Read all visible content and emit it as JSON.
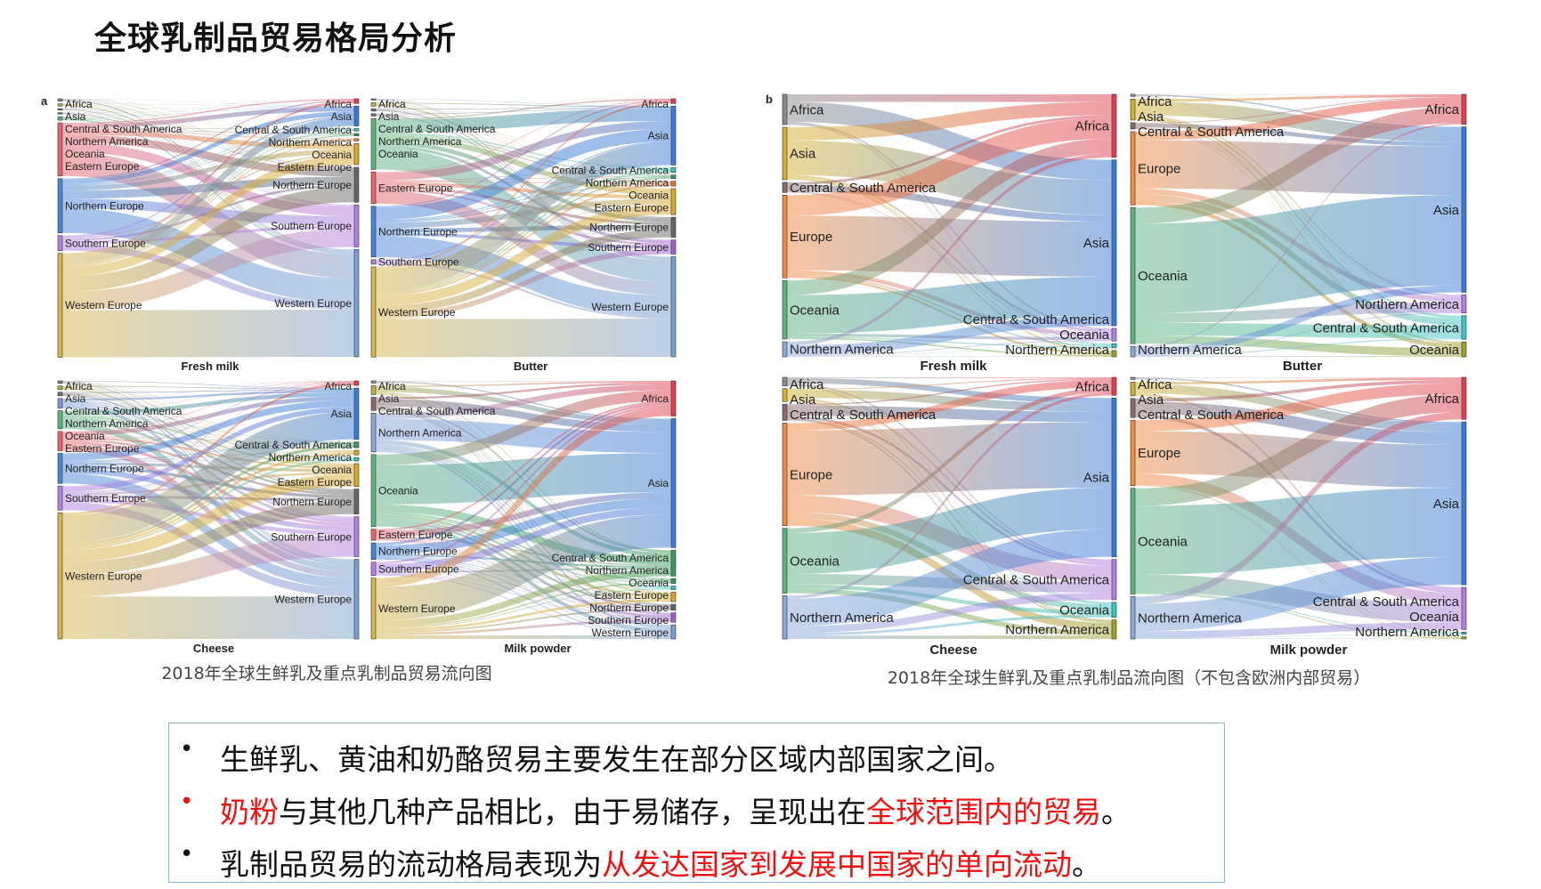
{
  "title": "全球乳制品贸易格局分析",
  "panel_a": {
    "letter": "a",
    "caption": "2018年全球生鲜乳及重点乳制品贸易流向图",
    "diagrams": [
      {
        "name": "Fresh milk",
        "left": [
          [
            "Africa",
            2,
            "#8a8a8a"
          ],
          [
            "Asia",
            2,
            "#b5b04a"
          ],
          [
            "Central & South America",
            1,
            "#777777"
          ],
          [
            "Northern America",
            1,
            "#777777"
          ],
          [
            "Oceania",
            3,
            "#5db37e"
          ],
          [
            "Eastern Europe",
            46,
            "#e8646a"
          ],
          [
            "Northern Europe",
            47,
            "#4a86d8"
          ],
          [
            "Southern Europe",
            13,
            "#b37fe0"
          ],
          [
            "Western Europe",
            90,
            "#d8b44a"
          ]
        ],
        "right": [
          [
            "Africa",
            4,
            "#e04050"
          ],
          [
            "Asia",
            17,
            "#3a7bd5"
          ],
          [
            "Central & South America",
            2,
            "#3cc5b5"
          ],
          [
            "Northern America",
            2,
            "#3a9a5a"
          ],
          [
            "Oceania",
            2,
            "#e07a30"
          ],
          [
            "Eastern Europe",
            18,
            "#d8a830"
          ],
          [
            "Northern Europe",
            30,
            "#666666"
          ],
          [
            "Southern Europe",
            36,
            "#b37fe0"
          ],
          [
            "Western Europe",
            92,
            "#7aa0d0"
          ]
        ]
      },
      {
        "name": "Butter",
        "left": [
          [
            "Africa",
            1,
            "#8a8a8a"
          ],
          [
            "Asia",
            3,
            "#b5b04a"
          ],
          [
            "Central & South America",
            2,
            "#777777"
          ],
          [
            "Northern America",
            2,
            "#777777"
          ],
          [
            "Oceania",
            45,
            "#5db37e"
          ],
          [
            "Eastern Europe",
            28,
            "#e8646a"
          ],
          [
            "Northern Europe",
            45,
            "#4a86d8"
          ],
          [
            "Southern Europe",
            4,
            "#b37fe0"
          ],
          [
            "Western Europe",
            80,
            "#d8b44a"
          ]
        ],
        "right": [
          [
            "Africa",
            4,
            "#e04050"
          ],
          [
            "Asia",
            50,
            "#3a7bd5"
          ],
          [
            "Central & South America",
            4,
            "#3cc5b5"
          ],
          [
            "Northern America",
            3,
            "#3a9a5a"
          ],
          [
            "Oceania",
            4,
            "#e07a30"
          ],
          [
            "Eastern Europe",
            22,
            "#d8a830"
          ],
          [
            "Northern Europe",
            17,
            "#666666"
          ],
          [
            "Southern Europe",
            12,
            "#a060d0"
          ],
          [
            "Western Europe",
            85,
            "#7aa0d0"
          ]
        ]
      },
      {
        "name": "Cheese",
        "left": [
          [
            "Africa",
            2,
            "#8a8a8a"
          ],
          [
            "Asia",
            3,
            "#b5b04a"
          ],
          [
            "Central & South America",
            3,
            "#777777"
          ],
          [
            "Northern America",
            8,
            "#7a9ad8"
          ],
          [
            "Oceania",
            15,
            "#5db37e"
          ],
          [
            "Eastern Europe",
            16,
            "#e8646a"
          ],
          [
            "Northern Europe",
            25,
            "#4a86d8"
          ],
          [
            "Southern Europe",
            20,
            "#b37fe0"
          ],
          [
            "Western Europe",
            105,
            "#d8b44a"
          ]
        ],
        "right": [
          [
            "Africa",
            4,
            "#e04050"
          ],
          [
            "Asia",
            45,
            "#3a7bd5"
          ],
          [
            "Central & South America",
            5,
            "#3a9a5a"
          ],
          [
            "Northern America",
            4,
            "#d8a830"
          ],
          [
            "Oceania",
            3,
            "#3cc5b5"
          ],
          [
            "Eastern Europe",
            20,
            "#d8a830"
          ],
          [
            "Northern Europe",
            22,
            "#666666"
          ],
          [
            "Southern Europe",
            35,
            "#b37fe0"
          ],
          [
            "Western Europe",
            70,
            "#7aa0d0"
          ]
        ]
      },
      {
        "name": "Milk powder",
        "left": [
          [
            "Africa",
            2,
            "#8a8a8a"
          ],
          [
            "Asia",
            8,
            "#b5b04a"
          ],
          [
            "Central & South America",
            12,
            "#8a6a6a"
          ],
          [
            "Northern America",
            35,
            "#8aa8d8"
          ],
          [
            "Oceania",
            65,
            "#5db37e"
          ],
          [
            "Eastern Europe",
            10,
            "#e8646a"
          ],
          [
            "Northern Europe",
            15,
            "#4a86d8"
          ],
          [
            "Southern Europe",
            12,
            "#b37fe0"
          ],
          [
            "Western Europe",
            55,
            "#d8b44a"
          ]
        ],
        "right": [
          [
            "Africa",
            30,
            "#e04050"
          ],
          [
            "Asia",
            110,
            "#3a7bd5"
          ],
          [
            "Central & South America",
            22,
            "#3a9a5a"
          ],
          [
            "Northern America",
            4,
            "#3a9a5a"
          ],
          [
            "Oceania",
            3,
            "#3cc5b5"
          ],
          [
            "Eastern Europe",
            8,
            "#d8a830"
          ],
          [
            "Northern Europe",
            5,
            "#666666"
          ],
          [
            "Southern Europe",
            8,
            "#a060d0"
          ],
          [
            "Western Europe",
            12,
            "#7aa0d0"
          ]
        ]
      }
    ]
  },
  "panel_b": {
    "letter": "b",
    "caption": "2018年全球生鲜乳及重点乳制品流向图（不包含欧洲内部贸易）",
    "diagrams": [
      {
        "name": "Fresh milk",
        "left": [
          [
            "Africa",
            30,
            "#8a8a8a"
          ],
          [
            "Asia",
            52,
            "#d4b030"
          ],
          [
            "Central & South America",
            10,
            "#8a6a6a"
          ],
          [
            "Europe",
            82,
            "#f08a40"
          ],
          [
            "Oceania",
            58,
            "#5db37e"
          ],
          [
            "Northern America",
            15,
            "#8aa8d8"
          ]
        ],
        "right": [
          [
            "Africa",
            60,
            "#e04050"
          ],
          [
            "Asia",
            158,
            "#3a7bd5"
          ],
          [
            "Central & South America",
            12,
            "#b080e0"
          ],
          [
            "Oceania",
            4,
            "#3cc5c5"
          ],
          [
            "Northern America",
            6,
            "#a0a030"
          ]
        ]
      },
      {
        "name": "Butter",
        "left": [
          [
            "Africa",
            2,
            "#8a8a8a"
          ],
          [
            "Asia",
            20,
            "#d4b030"
          ],
          [
            "Central & South America",
            6,
            "#8a6a6a"
          ],
          [
            "Europe",
            70,
            "#f08a40"
          ],
          [
            "Oceania",
            130,
            "#5db37e"
          ],
          [
            "Northern America",
            10,
            "#8aa8d8"
          ]
        ],
        "right": [
          [
            "Africa",
            28,
            "#e04050"
          ],
          [
            "Asia",
            155,
            "#3a7bd5"
          ],
          [
            "Northern America",
            17,
            "#b080e0"
          ],
          [
            "Central & South America",
            22,
            "#3cc5c5"
          ],
          [
            "Oceania",
            14,
            "#a0a030"
          ]
        ]
      },
      {
        "name": "Cheese",
        "left": [
          [
            "Africa",
            8,
            "#8a8a8a"
          ],
          [
            "Asia",
            12,
            "#d4b030"
          ],
          [
            "Central & South America",
            15,
            "#8a6a6a"
          ],
          [
            "Europe",
            95,
            "#f08a40"
          ],
          [
            "Oceania",
            60,
            "#5db37e"
          ],
          [
            "Northern America",
            40,
            "#8aa8d8"
          ]
        ],
        "right": [
          [
            "Africa",
            17,
            "#e04050"
          ],
          [
            "Asia",
            150,
            "#3a7bd5"
          ],
          [
            "Central & South America",
            38,
            "#b080e0"
          ],
          [
            "Oceania",
            14,
            "#3cc5c5"
          ],
          [
            "Northern America",
            18,
            "#a0a030"
          ]
        ]
      },
      {
        "name": "Milk powder",
        "left": [
          [
            "Africa",
            2,
            "#8a8a8a"
          ],
          [
            "Asia",
            13,
            "#d4b030"
          ],
          [
            "Central & South America",
            18,
            "#8a6a6a"
          ],
          [
            "Europe",
            62,
            "#f08a40"
          ],
          [
            "Oceania",
            100,
            "#5db37e"
          ],
          [
            "Northern America",
            40,
            "#8aa8d8"
          ]
        ],
        "right": [
          [
            "Africa",
            40,
            "#e04050"
          ],
          [
            "Asia",
            155,
            "#3a7bd5"
          ],
          [
            "Central & South America",
            40,
            "#b080e0"
          ],
          [
            "Oceania",
            2,
            "#3cc5c5"
          ],
          [
            "Northern America",
            2,
            "#a0a030"
          ]
        ]
      }
    ]
  },
  "notes": {
    "border_color": "#8fb4e0",
    "highlight_color": "#f01010",
    "bullets": [
      {
        "bullet_red": false,
        "segments": [
          {
            "text": "生鲜乳、黄油和奶酪贸易主要发生在部分区域内部国家之间。",
            "red": false
          }
        ]
      },
      {
        "bullet_red": true,
        "segments": [
          {
            "text": "奶粉",
            "red": true
          },
          {
            "text": "与其他几种产品相比，由于易储存，呈现出在",
            "red": false
          },
          {
            "text": "全球范围内的贸易",
            "red": true
          },
          {
            "text": "。",
            "red": false
          }
        ]
      },
      {
        "bullet_red": false,
        "segments": [
          {
            "text": "乳制品贸易的流动格局表现为",
            "red": false
          },
          {
            "text": "从发达国家到发展中国家的单向流动",
            "red": true
          },
          {
            "text": "。",
            "red": false
          }
        ]
      }
    ]
  }
}
